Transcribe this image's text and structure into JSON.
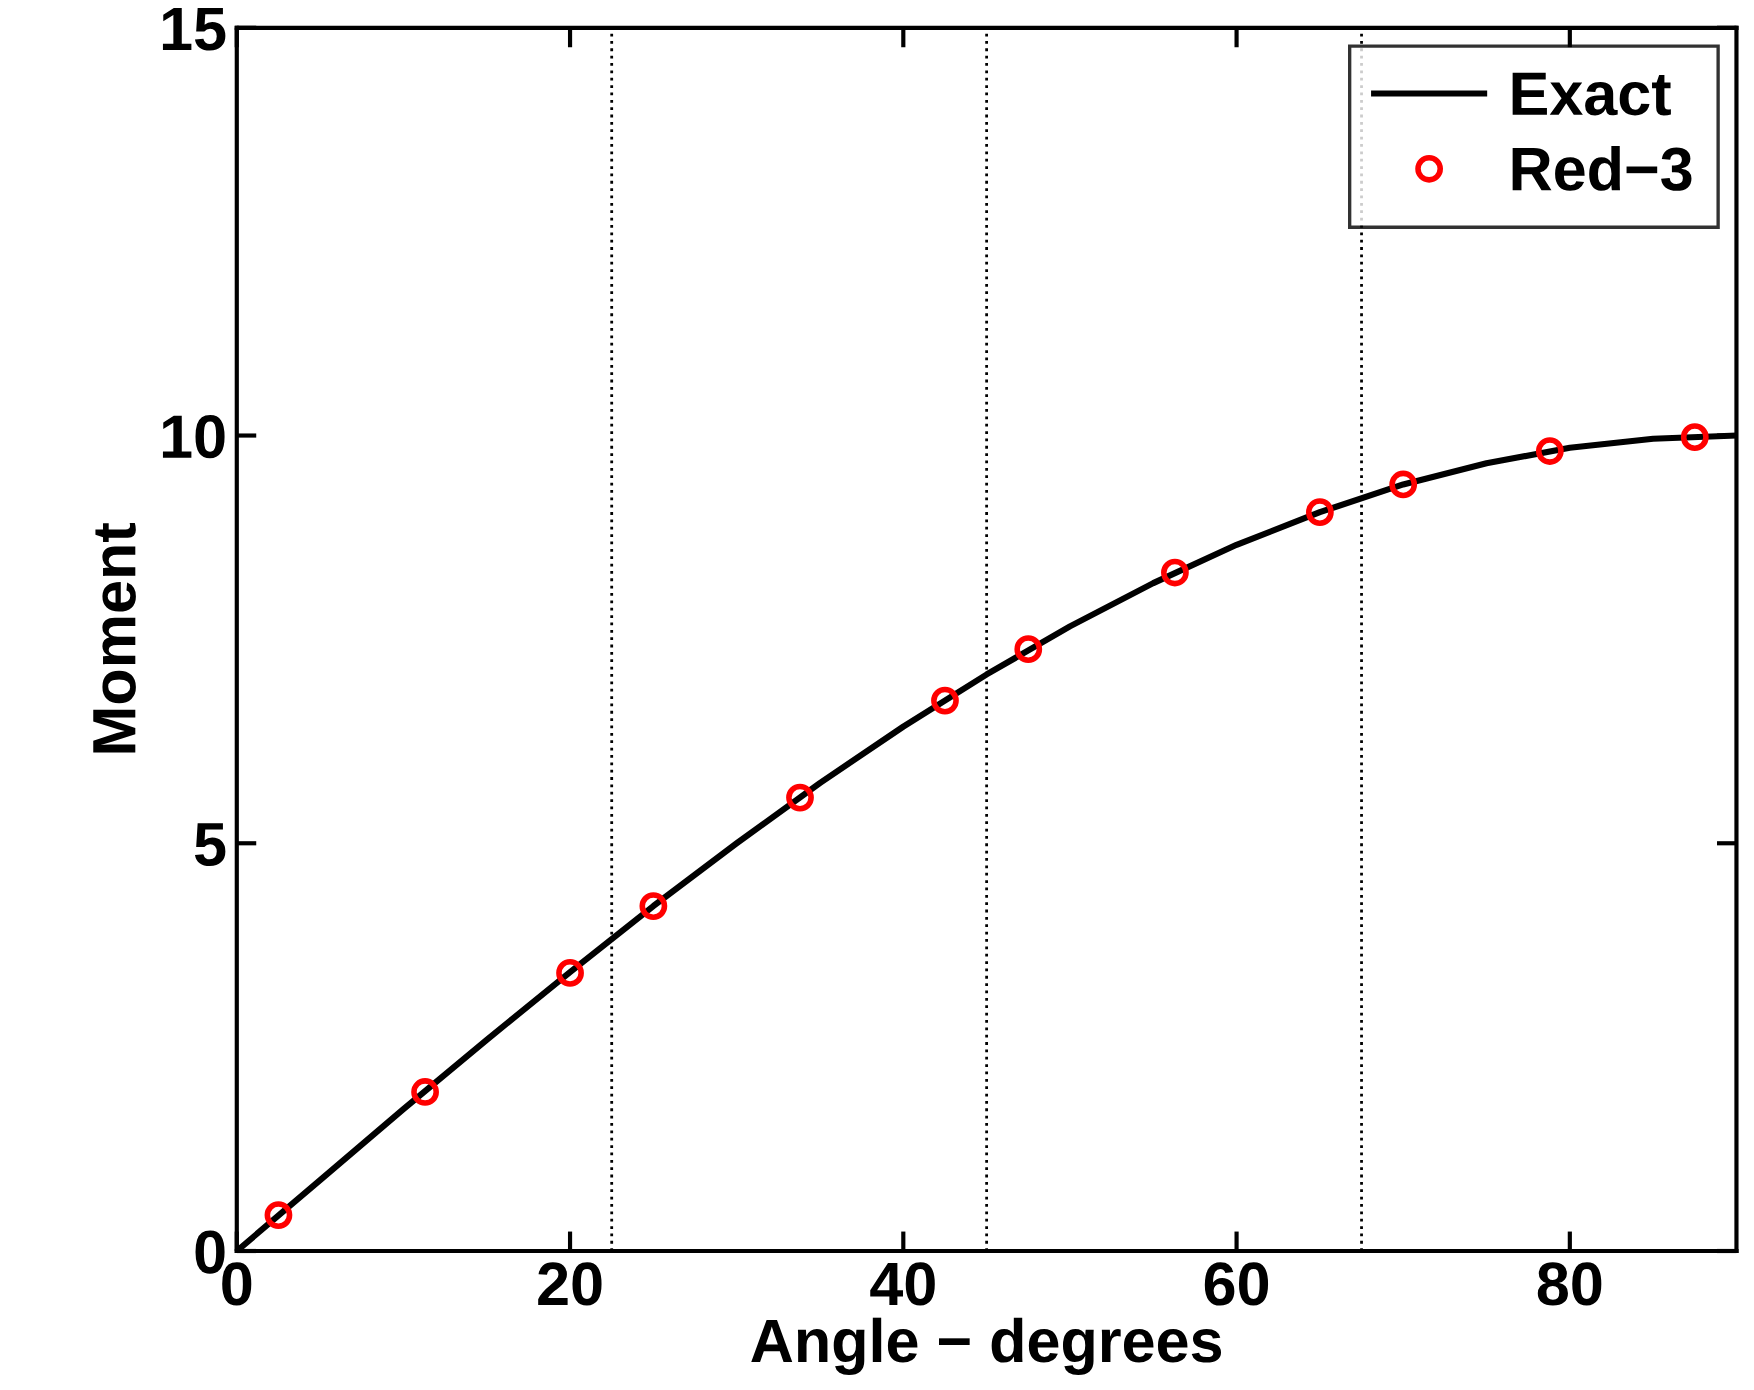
{
  "chart_data": {
    "type": "line",
    "xlabel": "Angle − degrees",
    "ylabel": "Moment",
    "xlim": [
      0,
      90
    ],
    "ylim": [
      0,
      15
    ],
    "xticks": [
      0,
      20,
      40,
      60,
      80
    ],
    "yticks": [
      0,
      5,
      10,
      15
    ],
    "grid": false,
    "legend": "top right",
    "series": [
      {
        "name": "Exact",
        "color": "#000000",
        "marker": "none",
        "line_style": "solid",
        "x": [
          0,
          5,
          10,
          15,
          20,
          25,
          30,
          35,
          40,
          45,
          50,
          55,
          60,
          65,
          70,
          75,
          80,
          85,
          90
        ],
        "values": [
          0,
          0.87,
          1.74,
          2.59,
          3.42,
          4.23,
          5.0,
          5.74,
          6.43,
          7.07,
          7.66,
          8.19,
          8.66,
          9.06,
          9.4,
          9.66,
          9.85,
          9.96,
          10.0
        ]
      },
      {
        "name": "Red−3",
        "type": "scatter",
        "color": "#ff0000",
        "marker": "circle",
        "x": [
          2.5,
          11.3,
          20.0,
          25.0,
          33.8,
          42.5,
          47.5,
          56.3,
          65.0,
          70.0,
          78.8,
          87.5
        ],
        "values": [
          0.44,
          1.95,
          3.41,
          4.23,
          5.56,
          6.75,
          7.38,
          8.32,
          9.06,
          9.4,
          9.81,
          9.98
        ]
      }
    ],
    "ref_lines": [
      {
        "axis": "x",
        "value": 22.5,
        "color": "#000000",
        "line_style": "dotted"
      },
      {
        "axis": "x",
        "value": 45,
        "color": "#000000",
        "line_style": "dotted"
      },
      {
        "axis": "x",
        "value": 67.5,
        "color": "#000000",
        "line_style": "dotted"
      }
    ]
  }
}
